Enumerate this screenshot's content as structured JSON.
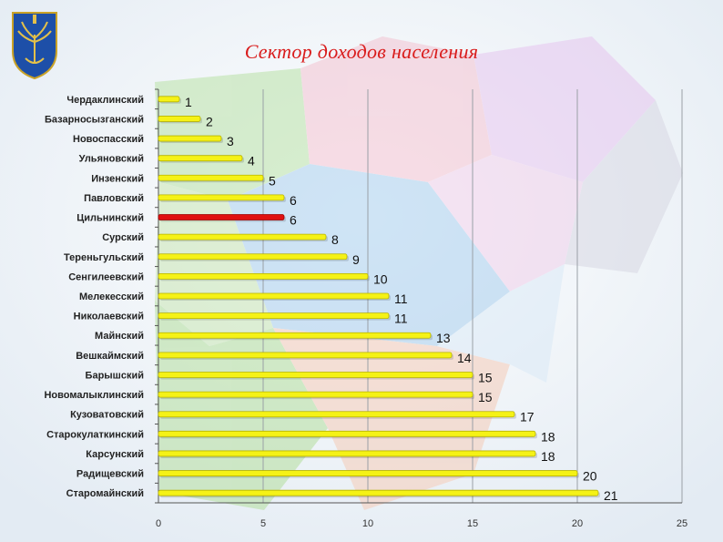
{
  "title": "Сектор доходов населения",
  "colors": {
    "bar": "#f5f216",
    "bar_edge": "#b8b400",
    "highlight_bar": "#e01010",
    "highlight_edge": "#9a0000",
    "title": "#d91c1c",
    "emblem_blue": "#1d4fa8"
  },
  "icons": {
    "emblem": "coat-of-arms-emblem"
  },
  "chart_data": {
    "type": "bar",
    "orientation": "horizontal",
    "categories": [
      "Чердаклинский",
      "Базарносызганский",
      "Новоспасский",
      "Ульяновский",
      "Инзенский",
      "Павловский",
      "Цильнинский",
      "Сурский",
      "Тереньгульский",
      "Сенгилеевский",
      "Мелекесский",
      "Николаевский",
      "Майнский",
      "Вешкаймский",
      "Барышский",
      "Новомалыклинский",
      "Кузоватовский",
      "Старокулаткинский",
      "Карсунский",
      "Радищевский",
      "Старомайнский"
    ],
    "values": [
      1,
      2,
      3,
      4,
      5,
      6,
      6,
      8,
      9,
      10,
      11,
      11,
      13,
      14,
      15,
      15,
      17,
      18,
      18,
      20,
      21
    ],
    "data_labels": [
      "1",
      "2",
      "3",
      "4",
      "5",
      "6",
      "6",
      "8",
      "9",
      "10",
      "11",
      "11",
      "13",
      "14",
      "15",
      "15",
      "17",
      "18",
      "18",
      "20",
      "21"
    ],
    "highlight_index": 6,
    "xlim": [
      0,
      25
    ],
    "xticks": [
      0,
      5,
      10,
      15,
      20,
      25
    ],
    "xtick_labels": [
      "0",
      "5",
      "10",
      "15",
      "20",
      "25"
    ],
    "grid": true,
    "title": "Сектор доходов населения",
    "xlabel": "",
    "ylabel": ""
  }
}
